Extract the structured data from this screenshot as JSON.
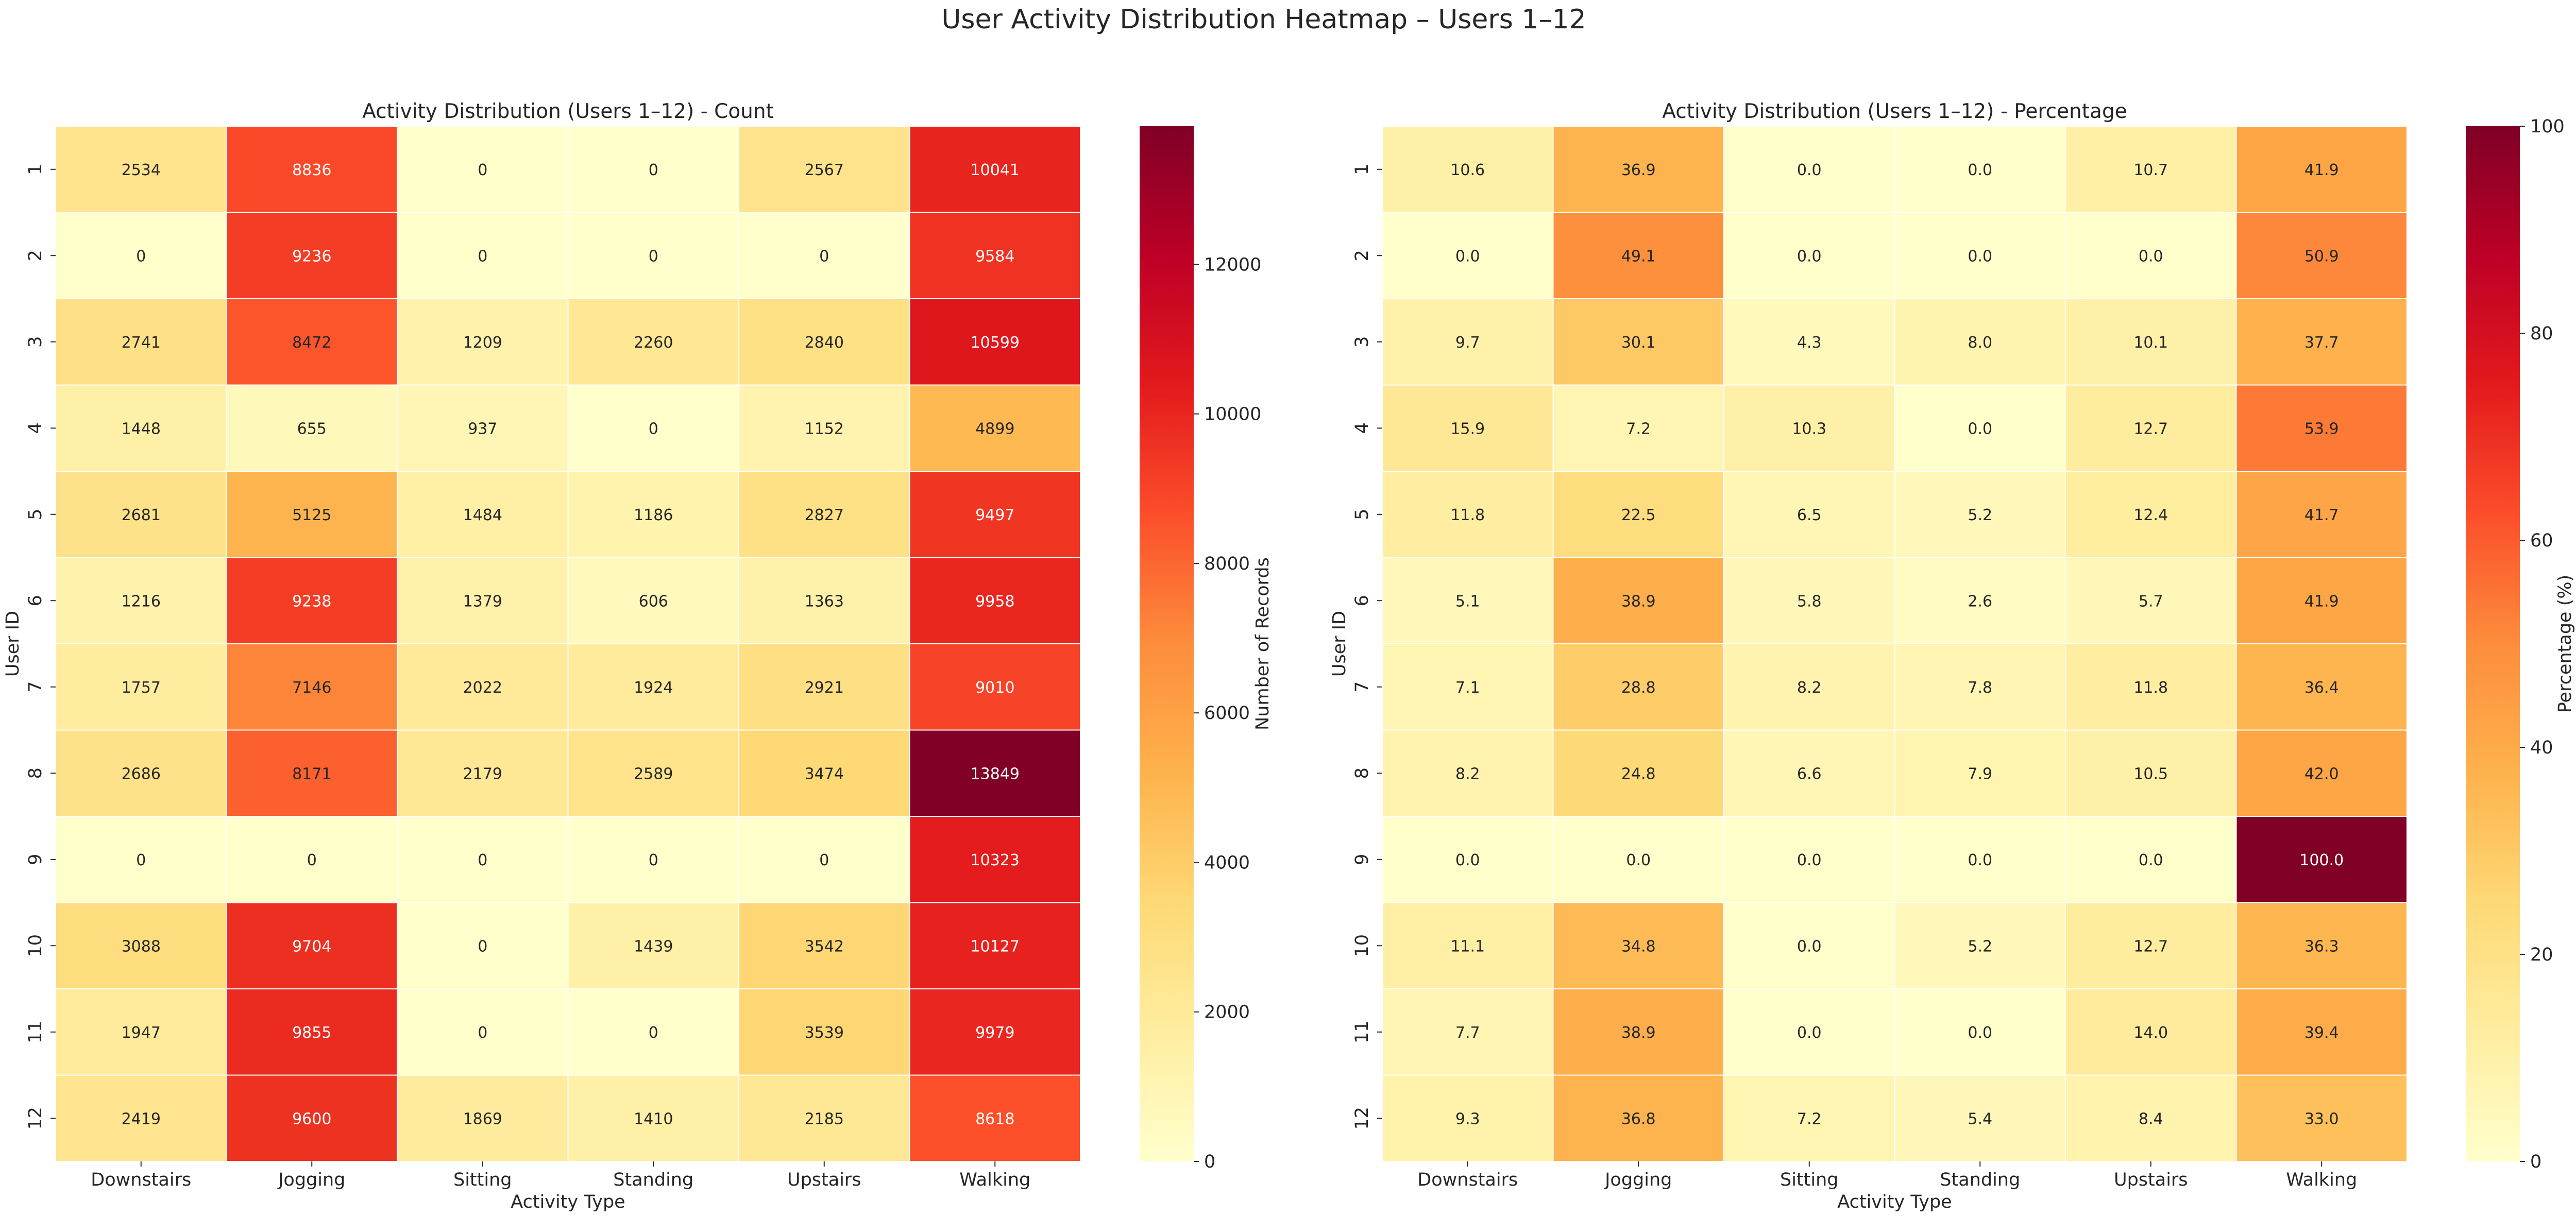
{
  "figure": {
    "suptitle": "User Activity Distribution Heatmap – Users 1–12"
  },
  "chart_data": [
    {
      "type": "heatmap",
      "title": "Activity Distribution (Users 1–12) - Count",
      "xlabel": "Activity Type",
      "ylabel": "User ID",
      "x_categories": [
        "Downstairs",
        "Jogging",
        "Sitting",
        "Standing",
        "Upstairs",
        "Walking"
      ],
      "y_categories": [
        "1",
        "2",
        "3",
        "4",
        "5",
        "6",
        "7",
        "8",
        "9",
        "10",
        "11",
        "12"
      ],
      "values": [
        [
          2534,
          8836,
          0,
          0,
          2567,
          10041
        ],
        [
          0,
          9236,
          0,
          0,
          0,
          9584
        ],
        [
          2741,
          8472,
          1209,
          2260,
          2840,
          10599
        ],
        [
          1448,
          655,
          937,
          0,
          1152,
          4899
        ],
        [
          2681,
          5125,
          1484,
          1186,
          2827,
          9497
        ],
        [
          1216,
          9238,
          1379,
          606,
          1363,
          9958
        ],
        [
          1757,
          7146,
          2022,
          1924,
          2921,
          9010
        ],
        [
          2686,
          8171,
          2179,
          2589,
          3474,
          13849
        ],
        [
          0,
          0,
          0,
          0,
          0,
          10323
        ],
        [
          3088,
          9704,
          0,
          1439,
          3542,
          10127
        ],
        [
          1947,
          9855,
          0,
          0,
          3539,
          9979
        ],
        [
          2419,
          9600,
          1869,
          1410,
          2185,
          8618
        ]
      ],
      "value_format": "integer",
      "colormap": "YlOrRd",
      "colorbar": {
        "label": "Number of Records",
        "range": [
          0,
          13849
        ],
        "ticks": [
          "0",
          "2000",
          "4000",
          "6000",
          "8000",
          "10000",
          "12000"
        ]
      }
    },
    {
      "type": "heatmap",
      "title": "Activity Distribution (Users 1–12) - Percentage",
      "xlabel": "Activity Type",
      "ylabel": "User ID",
      "x_categories": [
        "Downstairs",
        "Jogging",
        "Sitting",
        "Standing",
        "Upstairs",
        "Walking"
      ],
      "y_categories": [
        "1",
        "2",
        "3",
        "4",
        "5",
        "6",
        "7",
        "8",
        "9",
        "10",
        "11",
        "12"
      ],
      "values": [
        [
          10.6,
          36.9,
          0.0,
          0.0,
          10.7,
          41.9
        ],
        [
          0.0,
          49.1,
          0.0,
          0.0,
          0.0,
          50.9
        ],
        [
          9.7,
          30.1,
          4.3,
          8.0,
          10.1,
          37.7
        ],
        [
          15.9,
          7.2,
          10.3,
          0.0,
          12.7,
          53.9
        ],
        [
          11.8,
          22.5,
          6.5,
          5.2,
          12.4,
          41.7
        ],
        [
          5.1,
          38.9,
          5.8,
          2.6,
          5.7,
          41.9
        ],
        [
          7.1,
          28.8,
          8.2,
          7.8,
          11.8,
          36.4
        ],
        [
          8.2,
          24.8,
          6.6,
          7.9,
          10.5,
          42.0
        ],
        [
          0.0,
          0.0,
          0.0,
          0.0,
          0.0,
          100.0
        ],
        [
          11.1,
          34.8,
          0.0,
          5.2,
          12.7,
          36.3
        ],
        [
          7.7,
          38.9,
          0.0,
          0.0,
          14.0,
          39.4
        ],
        [
          9.3,
          36.8,
          7.2,
          5.4,
          8.4,
          33.0
        ]
      ],
      "value_format": "one-decimal",
      "colormap": "YlOrRd",
      "colorbar": {
        "label": "Percentage (%)",
        "range": [
          0,
          100
        ],
        "ticks": [
          "0",
          "20",
          "40",
          "60",
          "80",
          "100"
        ]
      }
    }
  ],
  "colors": {
    "colormap_stops": [
      "#ffffcc",
      "#ffeda0",
      "#fed976",
      "#feb24c",
      "#fd8d3c",
      "#fc4e2a",
      "#e31a1c",
      "#bd0026",
      "#800026"
    ],
    "text_dark": "#262626",
    "text_light": "#ffffff",
    "cell_border": "#ffffff"
  }
}
